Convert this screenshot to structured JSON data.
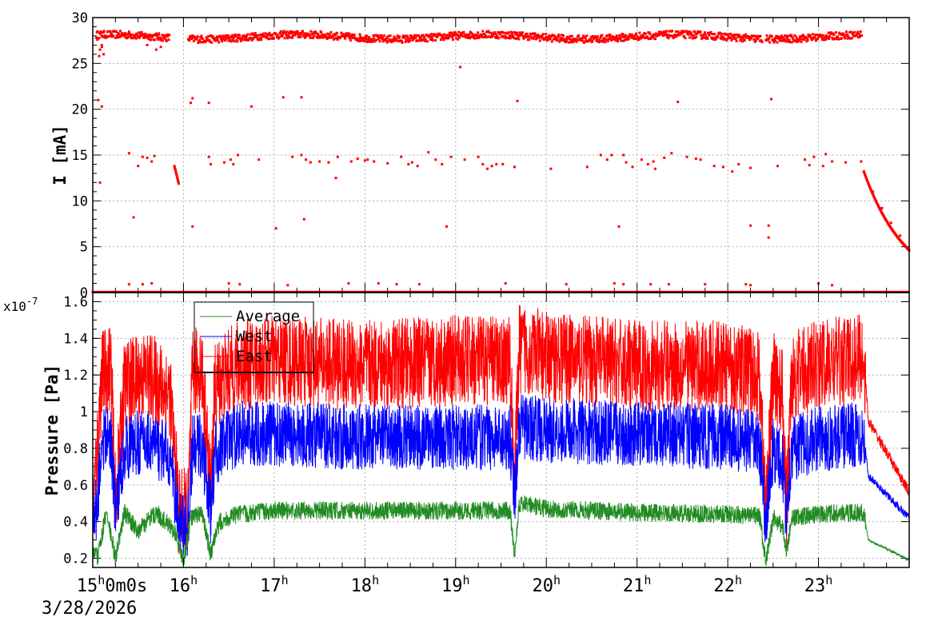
{
  "chart_data": [
    {
      "type": "scatter",
      "name": "current",
      "ylabel": "I [mA]",
      "ylim": [
        0,
        30
      ],
      "yticks": [
        0,
        5,
        10,
        15,
        20,
        25,
        30
      ],
      "xlim": [
        15.0,
        24.0
      ],
      "grid": true,
      "series": [
        {
          "color": "#ff0000",
          "points": [
            [
              15.05,
              27.6
            ],
            [
              15.07,
              25.8
            ],
            [
              15.08,
              26.5
            ],
            [
              15.1,
              27.0
            ],
            [
              15.12,
              26.0
            ],
            [
              15.06,
              21.0
            ],
            [
              15.1,
              20.3
            ],
            [
              15.08,
              12.0
            ],
            [
              15.1,
              26.8
            ],
            [
              15.4,
              15.2
            ],
            [
              15.45,
              8.2
            ],
            [
              15.5,
              13.8
            ],
            [
              15.55,
              14.8
            ],
            [
              15.6,
              14.7
            ],
            [
              15.65,
              14.3
            ],
            [
              15.68,
              14.9
            ],
            [
              15.6,
              27.0
            ],
            [
              15.7,
              26.5
            ],
            [
              15.75,
              26.8
            ],
            [
              16.08,
              20.7
            ],
            [
              16.1,
              21.2
            ],
            [
              16.1,
              7.2
            ],
            [
              16.28,
              14.8
            ],
            [
              16.3,
              14.0
            ],
            [
              16.28,
              20.7
            ],
            [
              16.45,
              14.2
            ],
            [
              16.52,
              14.5
            ],
            [
              16.55,
              14.0
            ],
            [
              16.6,
              15.0
            ],
            [
              16.75,
              20.3
            ],
            [
              16.83,
              14.5
            ],
            [
              17.02,
              7.0
            ],
            [
              17.1,
              21.3
            ],
            [
              17.2,
              14.8
            ],
            [
              17.3,
              21.3
            ],
            [
              17.3,
              15.0
            ],
            [
              17.33,
              8.0
            ],
            [
              17.35,
              14.5
            ],
            [
              17.4,
              14.2
            ],
            [
              17.5,
              14.3
            ],
            [
              17.6,
              14.2
            ],
            [
              17.68,
              12.5
            ],
            [
              17.7,
              14.8
            ],
            [
              17.85,
              14.3
            ],
            [
              17.92,
              14.6
            ],
            [
              18.0,
              14.4
            ],
            [
              18.03,
              14.5
            ],
            [
              18.1,
              14.3
            ],
            [
              18.25,
              14.1
            ],
            [
              18.4,
              14.8
            ],
            [
              18.48,
              14.0
            ],
            [
              18.52,
              14.2
            ],
            [
              18.58,
              13.8
            ],
            [
              18.7,
              15.3
            ],
            [
              18.78,
              14.5
            ],
            [
              18.85,
              14.0
            ],
            [
              18.9,
              7.2
            ],
            [
              18.95,
              14.8
            ],
            [
              19.05,
              24.6
            ],
            [
              19.1,
              14.5
            ],
            [
              19.25,
              14.8
            ],
            [
              19.3,
              14.0
            ],
            [
              19.35,
              13.5
            ],
            [
              19.4,
              13.8
            ],
            [
              19.45,
              14.0
            ],
            [
              19.52,
              14.0
            ],
            [
              19.65,
              13.7
            ],
            [
              19.68,
              20.9
            ],
            [
              20.05,
              13.5
            ],
            [
              20.45,
              13.7
            ],
            [
              20.6,
              15.0
            ],
            [
              20.67,
              14.5
            ],
            [
              20.72,
              15.0
            ],
            [
              20.8,
              7.2
            ],
            [
              20.85,
              15.0
            ],
            [
              20.88,
              14.2
            ],
            [
              20.95,
              13.7
            ],
            [
              21.05,
              14.5
            ],
            [
              21.12,
              14.0
            ],
            [
              21.18,
              14.3
            ],
            [
              21.2,
              13.5
            ],
            [
              21.3,
              14.7
            ],
            [
              21.38,
              15.2
            ],
            [
              21.45,
              20.8
            ],
            [
              21.55,
              14.8
            ],
            [
              21.65,
              14.6
            ],
            [
              21.7,
              14.5
            ],
            [
              21.85,
              13.8
            ],
            [
              21.95,
              13.7
            ],
            [
              22.05,
              13.2
            ],
            [
              22.12,
              14.0
            ],
            [
              22.25,
              13.6
            ],
            [
              22.25,
              7.3
            ],
            [
              22.45,
              6.0
            ],
            [
              22.45,
              7.3
            ],
            [
              22.48,
              21.1
            ],
            [
              22.55,
              13.8
            ],
            [
              22.85,
              14.5
            ],
            [
              22.9,
              13.9
            ],
            [
              22.95,
              14.8
            ],
            [
              23.05,
              13.8
            ],
            [
              23.08,
              15.1
            ],
            [
              23.15,
              14.3
            ],
            [
              23.3,
              14.2
            ],
            [
              23.47,
              14.3
            ],
            [
              23.5,
              13.2
            ],
            [
              23.6,
              11.0
            ],
            [
              23.7,
              9.2
            ],
            [
              23.8,
              7.6
            ],
            [
              23.9,
              6.2
            ],
            [
              24.0,
              4.6
            ],
            [
              15.4,
              0.9
            ],
            [
              15.55,
              0.9
            ],
            [
              15.65,
              1.0
            ],
            [
              16.5,
              1.0
            ],
            [
              16.62,
              0.9
            ],
            [
              17.15,
              0.8
            ],
            [
              17.82,
              1.0
            ],
            [
              18.15,
              1.0
            ],
            [
              18.35,
              0.9
            ],
            [
              18.6,
              0.9
            ],
            [
              19.55,
              1.0
            ],
            [
              20.22,
              0.9
            ],
            [
              20.75,
              1.0
            ],
            [
              20.85,
              0.9
            ],
            [
              21.15,
              0.9
            ],
            [
              21.35,
              0.9
            ],
            [
              21.75,
              0.9
            ],
            [
              22.2,
              0.9
            ],
            [
              22.25,
              0.8
            ],
            [
              23.0,
              1.0
            ],
            [
              23.15,
              0.8
            ]
          ]
        }
      ]
    },
    {
      "type": "line",
      "name": "pressure",
      "ylabel": "Pressure [Pa]",
      "exponent_label": "x10",
      "exponent_power": "-7",
      "ylim": [
        0.15,
        1.65
      ],
      "yticks": [
        "0.2",
        "0.4",
        "0.6",
        "0.8",
        "1",
        "1.2",
        "1.4",
        "1.6"
      ],
      "xlim": [
        15.0,
        24.0
      ],
      "xticks": [
        {
          "h": "15",
          "rest": "0m0s"
        },
        {
          "h": "16",
          "rest": ""
        },
        {
          "h": "17",
          "rest": ""
        },
        {
          "h": "18",
          "rest": ""
        },
        {
          "h": "19",
          "rest": ""
        },
        {
          "h": "20",
          "rest": ""
        },
        {
          "h": "21",
          "rest": ""
        },
        {
          "h": "22",
          "rest": ""
        },
        {
          "h": "23",
          "rest": ""
        }
      ],
      "date_label": "3/28/2026",
      "grid": true,
      "legend": "top-left",
      "series": [
        {
          "name": "Average",
          "color": "#228b22",
          "keypoints": [
            [
              15.0,
              0.25
            ],
            [
              15.05,
              0.2
            ],
            [
              15.15,
              0.45
            ],
            [
              15.25,
              0.2
            ],
            [
              15.35,
              0.45
            ],
            [
              15.5,
              0.35
            ],
            [
              15.7,
              0.45
            ],
            [
              15.9,
              0.35
            ],
            [
              16.0,
              0.18
            ],
            [
              16.08,
              0.42
            ],
            [
              16.2,
              0.45
            ],
            [
              16.3,
              0.22
            ],
            [
              16.4,
              0.4
            ],
            [
              16.6,
              0.44
            ],
            [
              17.0,
              0.46
            ],
            [
              18.0,
              0.46
            ],
            [
              19.0,
              0.46
            ],
            [
              19.6,
              0.46
            ],
            [
              19.65,
              0.22
            ],
            [
              19.7,
              0.5
            ],
            [
              20.0,
              0.47
            ],
            [
              21.0,
              0.45
            ],
            [
              22.0,
              0.44
            ],
            [
              22.35,
              0.43
            ],
            [
              22.42,
              0.17
            ],
            [
              22.5,
              0.42
            ],
            [
              22.6,
              0.38
            ],
            [
              22.65,
              0.22
            ],
            [
              22.7,
              0.42
            ],
            [
              23.0,
              0.44
            ],
            [
              23.5,
              0.45
            ],
            [
              23.55,
              0.3
            ],
            [
              24.0,
              0.19
            ]
          ],
          "amplitude": 0.05
        },
        {
          "name": "West",
          "color": "#0000ff",
          "keypoints": [
            [
              15.0,
              0.38
            ],
            [
              15.05,
              0.5
            ],
            [
              15.1,
              0.85
            ],
            [
              15.2,
              0.85
            ],
            [
              15.25,
              0.45
            ],
            [
              15.35,
              0.8
            ],
            [
              15.6,
              0.85
            ],
            [
              15.85,
              0.75
            ],
            [
              15.95,
              0.4
            ],
            [
              16.05,
              0.38
            ],
            [
              16.1,
              0.8
            ],
            [
              16.2,
              0.82
            ],
            [
              16.3,
              0.45
            ],
            [
              16.35,
              0.78
            ],
            [
              16.6,
              0.88
            ],
            [
              17.0,
              0.88
            ],
            [
              18.0,
              0.86
            ],
            [
              19.0,
              0.86
            ],
            [
              19.6,
              0.86
            ],
            [
              19.65,
              0.55
            ],
            [
              19.7,
              0.92
            ],
            [
              20.0,
              0.9
            ],
            [
              21.0,
              0.88
            ],
            [
              22.0,
              0.86
            ],
            [
              22.35,
              0.82
            ],
            [
              22.42,
              0.4
            ],
            [
              22.5,
              0.8
            ],
            [
              22.6,
              0.72
            ],
            [
              22.65,
              0.42
            ],
            [
              22.7,
              0.8
            ],
            [
              23.0,
              0.85
            ],
            [
              23.5,
              0.88
            ],
            [
              23.55,
              0.65
            ],
            [
              24.0,
              0.42
            ]
          ],
          "amplitude": 0.18
        },
        {
          "name": "East",
          "color": "#ff0000",
          "keypoints": [
            [
              15.0,
              0.45
            ],
            [
              15.05,
              0.8
            ],
            [
              15.1,
              1.2
            ],
            [
              15.2,
              1.25
            ],
            [
              15.25,
              0.5
            ],
            [
              15.35,
              1.15
            ],
            [
              15.6,
              1.2
            ],
            [
              15.85,
              1.1
            ],
            [
              15.95,
              0.45
            ],
            [
              16.05,
              0.45
            ],
            [
              16.1,
              1.2
            ],
            [
              16.2,
              1.25
            ],
            [
              16.3,
              0.55
            ],
            [
              16.35,
              1.15
            ],
            [
              16.6,
              1.25
            ],
            [
              17.0,
              1.28
            ],
            [
              18.0,
              1.25
            ],
            [
              19.0,
              1.28
            ],
            [
              19.6,
              1.28
            ],
            [
              19.65,
              0.6
            ],
            [
              19.7,
              1.35
            ],
            [
              20.0,
              1.3
            ],
            [
              21.0,
              1.25
            ],
            [
              22.0,
              1.25
            ],
            [
              22.35,
              1.2
            ],
            [
              22.42,
              0.45
            ],
            [
              22.5,
              1.2
            ],
            [
              22.6,
              1.1
            ],
            [
              22.65,
              0.45
            ],
            [
              22.7,
              1.2
            ],
            [
              23.0,
              1.25
            ],
            [
              23.5,
              1.3
            ],
            [
              23.55,
              0.95
            ],
            [
              24.0,
              0.56
            ]
          ],
          "amplitude": 0.25
        }
      ]
    }
  ]
}
